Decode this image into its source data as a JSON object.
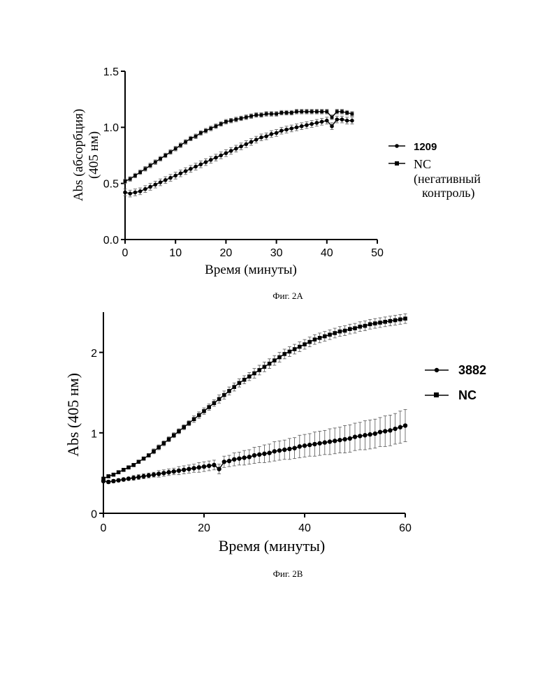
{
  "chart_data": [
    {
      "type": "line",
      "ylabel": "Abs (абсорбция)",
      "ylabel2": "(405 нм)",
      "xlabel": "Время (минуты)",
      "caption": "Фиг. 2A",
      "xlim": [
        0,
        50
      ],
      "ylim": [
        0,
        1.5
      ],
      "xticks": [
        "0",
        "10",
        "20",
        "30",
        "40",
        "50"
      ],
      "yticks": [
        "0.0",
        "0.5",
        "1.0",
        "1.5"
      ],
      "legend_placement": "right",
      "series": [
        {
          "name": "1209",
          "marker": "circle",
          "x": [
            0,
            1,
            2,
            3,
            4,
            5,
            6,
            7,
            8,
            9,
            10,
            11,
            12,
            13,
            14,
            15,
            16,
            17,
            18,
            19,
            20,
            21,
            22,
            23,
            24,
            25,
            26,
            27,
            28,
            29,
            30,
            31,
            32,
            33,
            34,
            35,
            36,
            37,
            38,
            39,
            40,
            41,
            42,
            43,
            44,
            45
          ],
          "y": [
            0.42,
            0.41,
            0.42,
            0.43,
            0.45,
            0.47,
            0.49,
            0.51,
            0.53,
            0.55,
            0.57,
            0.59,
            0.61,
            0.63,
            0.65,
            0.67,
            0.69,
            0.71,
            0.73,
            0.75,
            0.77,
            0.79,
            0.81,
            0.83,
            0.85,
            0.87,
            0.89,
            0.91,
            0.92,
            0.94,
            0.95,
            0.97,
            0.98,
            0.99,
            1.0,
            1.01,
            1.02,
            1.03,
            1.04,
            1.05,
            1.06,
            1.01,
            1.07,
            1.07,
            1.06,
            1.06
          ],
          "err": [
            0.03,
            0.03,
            0.03,
            0.03,
            0.03,
            0.03,
            0.03,
            0.03,
            0.03,
            0.03,
            0.03,
            0.03,
            0.03,
            0.03,
            0.03,
            0.03,
            0.03,
            0.03,
            0.03,
            0.03,
            0.03,
            0.03,
            0.03,
            0.03,
            0.03,
            0.03,
            0.03,
            0.03,
            0.03,
            0.03,
            0.03,
            0.03,
            0.03,
            0.03,
            0.03,
            0.03,
            0.03,
            0.03,
            0.03,
            0.03,
            0.03,
            0.03,
            0.03,
            0.03,
            0.03,
            0.03
          ]
        },
        {
          "name": "NC",
          "name_line2": "(негативный",
          "name_line3": "контроль)",
          "marker": "square",
          "x": [
            0,
            1,
            2,
            3,
            4,
            5,
            6,
            7,
            8,
            9,
            10,
            11,
            12,
            13,
            14,
            15,
            16,
            17,
            18,
            19,
            20,
            21,
            22,
            23,
            24,
            25,
            26,
            27,
            28,
            29,
            30,
            31,
            32,
            33,
            34,
            35,
            36,
            37,
            38,
            39,
            40,
            41,
            42,
            43,
            44,
            45
          ],
          "y": [
            0.52,
            0.54,
            0.57,
            0.6,
            0.63,
            0.66,
            0.69,
            0.72,
            0.75,
            0.78,
            0.81,
            0.84,
            0.87,
            0.9,
            0.92,
            0.95,
            0.97,
            0.99,
            1.01,
            1.03,
            1.05,
            1.06,
            1.07,
            1.08,
            1.09,
            1.1,
            1.11,
            1.11,
            1.12,
            1.12,
            1.12,
            1.13,
            1.13,
            1.13,
            1.14,
            1.14,
            1.14,
            1.14,
            1.14,
            1.14,
            1.14,
            1.09,
            1.14,
            1.14,
            1.13,
            1.12
          ],
          "err": [
            0.02,
            0.02,
            0.02,
            0.02,
            0.02,
            0.02,
            0.02,
            0.02,
            0.02,
            0.02,
            0.02,
            0.02,
            0.02,
            0.02,
            0.02,
            0.02,
            0.02,
            0.02,
            0.02,
            0.02,
            0.02,
            0.02,
            0.02,
            0.02,
            0.02,
            0.02,
            0.02,
            0.02,
            0.02,
            0.02,
            0.02,
            0.02,
            0.02,
            0.02,
            0.02,
            0.02,
            0.02,
            0.02,
            0.02,
            0.02,
            0.02,
            0.02,
            0.02,
            0.02,
            0.02,
            0.02
          ]
        }
      ]
    },
    {
      "type": "line",
      "ylabel": "Abs (405 нм)",
      "xlabel": "Время (минуты)",
      "caption": "Фиг. 2B",
      "xlim": [
        0,
        60
      ],
      "ylim": [
        0,
        2.5
      ],
      "xticks": [
        "0",
        "20",
        "40",
        "60"
      ],
      "yticks": [
        "0",
        "1",
        "2"
      ],
      "legend_placement": "right",
      "series": [
        {
          "name": "3882",
          "marker": "circle",
          "x": [
            0,
            1,
            2,
            3,
            4,
            5,
            6,
            7,
            8,
            9,
            10,
            11,
            12,
            13,
            14,
            15,
            16,
            17,
            18,
            19,
            20,
            21,
            22,
            23,
            24,
            25,
            26,
            27,
            28,
            29,
            30,
            31,
            32,
            33,
            34,
            35,
            36,
            37,
            38,
            39,
            40,
            41,
            42,
            43,
            44,
            45,
            46,
            47,
            48,
            49,
            50,
            51,
            52,
            53,
            54,
            55,
            56,
            57,
            58,
            59,
            60
          ],
          "y": [
            0.4,
            0.39,
            0.4,
            0.41,
            0.42,
            0.43,
            0.44,
            0.45,
            0.46,
            0.47,
            0.48,
            0.49,
            0.5,
            0.51,
            0.52,
            0.53,
            0.54,
            0.55,
            0.56,
            0.57,
            0.58,
            0.59,
            0.6,
            0.55,
            0.64,
            0.65,
            0.67,
            0.68,
            0.69,
            0.7,
            0.72,
            0.73,
            0.74,
            0.75,
            0.77,
            0.78,
            0.79,
            0.8,
            0.81,
            0.83,
            0.84,
            0.85,
            0.86,
            0.87,
            0.88,
            0.89,
            0.9,
            0.91,
            0.92,
            0.93,
            0.95,
            0.96,
            0.97,
            0.98,
            0.99,
            1.01,
            1.02,
            1.03,
            1.05,
            1.07,
            1.09
          ],
          "err": [
            0.02,
            0.02,
            0.02,
            0.02,
            0.02,
            0.02,
            0.03,
            0.03,
            0.03,
            0.03,
            0.03,
            0.04,
            0.04,
            0.04,
            0.04,
            0.05,
            0.05,
            0.05,
            0.05,
            0.06,
            0.06,
            0.06,
            0.06,
            0.06,
            0.07,
            0.07,
            0.08,
            0.08,
            0.09,
            0.09,
            0.1,
            0.1,
            0.11,
            0.11,
            0.12,
            0.12,
            0.12,
            0.13,
            0.13,
            0.14,
            0.14,
            0.14,
            0.15,
            0.15,
            0.15,
            0.16,
            0.16,
            0.16,
            0.17,
            0.17,
            0.17,
            0.17,
            0.18,
            0.18,
            0.18,
            0.18,
            0.19,
            0.19,
            0.19,
            0.2,
            0.2
          ]
        },
        {
          "name": "NC",
          "marker": "square",
          "x": [
            0,
            1,
            2,
            3,
            4,
            5,
            6,
            7,
            8,
            9,
            10,
            11,
            12,
            13,
            14,
            15,
            16,
            17,
            18,
            19,
            20,
            21,
            22,
            23,
            24,
            25,
            26,
            27,
            28,
            29,
            30,
            31,
            32,
            33,
            34,
            35,
            36,
            37,
            38,
            39,
            40,
            41,
            42,
            43,
            44,
            45,
            46,
            47,
            48,
            49,
            50,
            51,
            52,
            53,
            54,
            55,
            56,
            57,
            58,
            59,
            60
          ],
          "y": [
            0.43,
            0.46,
            0.48,
            0.51,
            0.54,
            0.57,
            0.6,
            0.64,
            0.68,
            0.72,
            0.77,
            0.82,
            0.87,
            0.92,
            0.97,
            1.02,
            1.07,
            1.12,
            1.17,
            1.22,
            1.27,
            1.32,
            1.37,
            1.42,
            1.47,
            1.52,
            1.57,
            1.62,
            1.66,
            1.7,
            1.74,
            1.78,
            1.82,
            1.86,
            1.9,
            1.94,
            1.98,
            2.01,
            2.04,
            2.07,
            2.1,
            2.13,
            2.16,
            2.18,
            2.2,
            2.22,
            2.24,
            2.26,
            2.27,
            2.29,
            2.3,
            2.32,
            2.33,
            2.35,
            2.36,
            2.37,
            2.38,
            2.39,
            2.4,
            2.41,
            2.42
          ],
          "err": [
            0.02,
            0.02,
            0.02,
            0.02,
            0.02,
            0.02,
            0.02,
            0.02,
            0.02,
            0.02,
            0.03,
            0.03,
            0.03,
            0.03,
            0.03,
            0.03,
            0.03,
            0.03,
            0.04,
            0.04,
            0.04,
            0.04,
            0.04,
            0.05,
            0.05,
            0.05,
            0.05,
            0.05,
            0.05,
            0.05,
            0.06,
            0.06,
            0.06,
            0.06,
            0.06,
            0.06,
            0.06,
            0.06,
            0.06,
            0.06,
            0.06,
            0.06,
            0.06,
            0.06,
            0.06,
            0.06,
            0.06,
            0.06,
            0.06,
            0.06,
            0.06,
            0.06,
            0.06,
            0.06,
            0.06,
            0.06,
            0.06,
            0.06,
            0.06,
            0.06,
            0.06
          ]
        }
      ]
    }
  ]
}
